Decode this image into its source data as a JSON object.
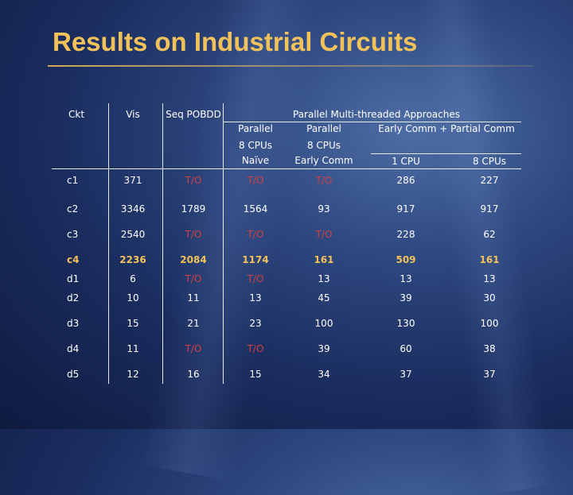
{
  "slide": {
    "title": "Results on Industrial Circuits"
  },
  "table": {
    "headers": {
      "ckt": "Ckt",
      "vis": "Vis",
      "seq": "Seq POBDD",
      "group": "Parallel Multi-threaded Approaches",
      "p1_line1": "Parallel",
      "p1_line2": "8 CPUs",
      "p1_line3": "Naïve",
      "p2_line1": "Parallel",
      "p2_line2": "8 CPUs",
      "p2_line3": "Early Comm",
      "early_group": "Early Comm + Partial Comm",
      "ec_1cpu": "1 CPU",
      "ec_8cpus": "8 CPUs"
    },
    "rows": [
      {
        "cells": [
          "c1",
          "371",
          "T/O",
          "T/O",
          "T/O",
          "286",
          "227"
        ],
        "timeouts": [
          2,
          3,
          4
        ],
        "highlight": false
      },
      {
        "cells": [
          "c2",
          "3346",
          "1789",
          "1564",
          "93",
          "917",
          "917"
        ],
        "timeouts": [],
        "highlight": false
      },
      {
        "cells": [
          "c3",
          "2540",
          "T/O",
          "T/O",
          "T/O",
          "228",
          "62"
        ],
        "timeouts": [
          2,
          3,
          4
        ],
        "highlight": false
      },
      {
        "cells": [
          "c4",
          "2236",
          "2084",
          "1174",
          "161",
          "509",
          "161"
        ],
        "timeouts": [],
        "highlight": true
      },
      {
        "cells": [
          "d1",
          "6",
          "T/O",
          "T/O",
          "13",
          "13",
          "13"
        ],
        "timeouts": [
          2,
          3
        ],
        "highlight": false
      },
      {
        "cells": [
          "d2",
          "10",
          "11",
          "13",
          "45",
          "39",
          "30"
        ],
        "timeouts": [],
        "highlight": false
      },
      {
        "cells": [
          "d3",
          "15",
          "21",
          "23",
          "100",
          "130",
          "100"
        ],
        "timeouts": [],
        "highlight": false
      },
      {
        "cells": [
          "d4",
          "11",
          "T/O",
          "T/O",
          "39",
          "60",
          "38"
        ],
        "timeouts": [
          2,
          3
        ],
        "highlight": false
      },
      {
        "cells": [
          "d5",
          "12",
          "16",
          "15",
          "34",
          "37",
          "37"
        ],
        "timeouts": [],
        "highlight": false
      }
    ]
  },
  "colors": {
    "title": "#f2c25a",
    "timeout": "#d04040",
    "highlight": "#f2c25a",
    "text": "#ffffff",
    "grid": "#e6ebf5"
  }
}
